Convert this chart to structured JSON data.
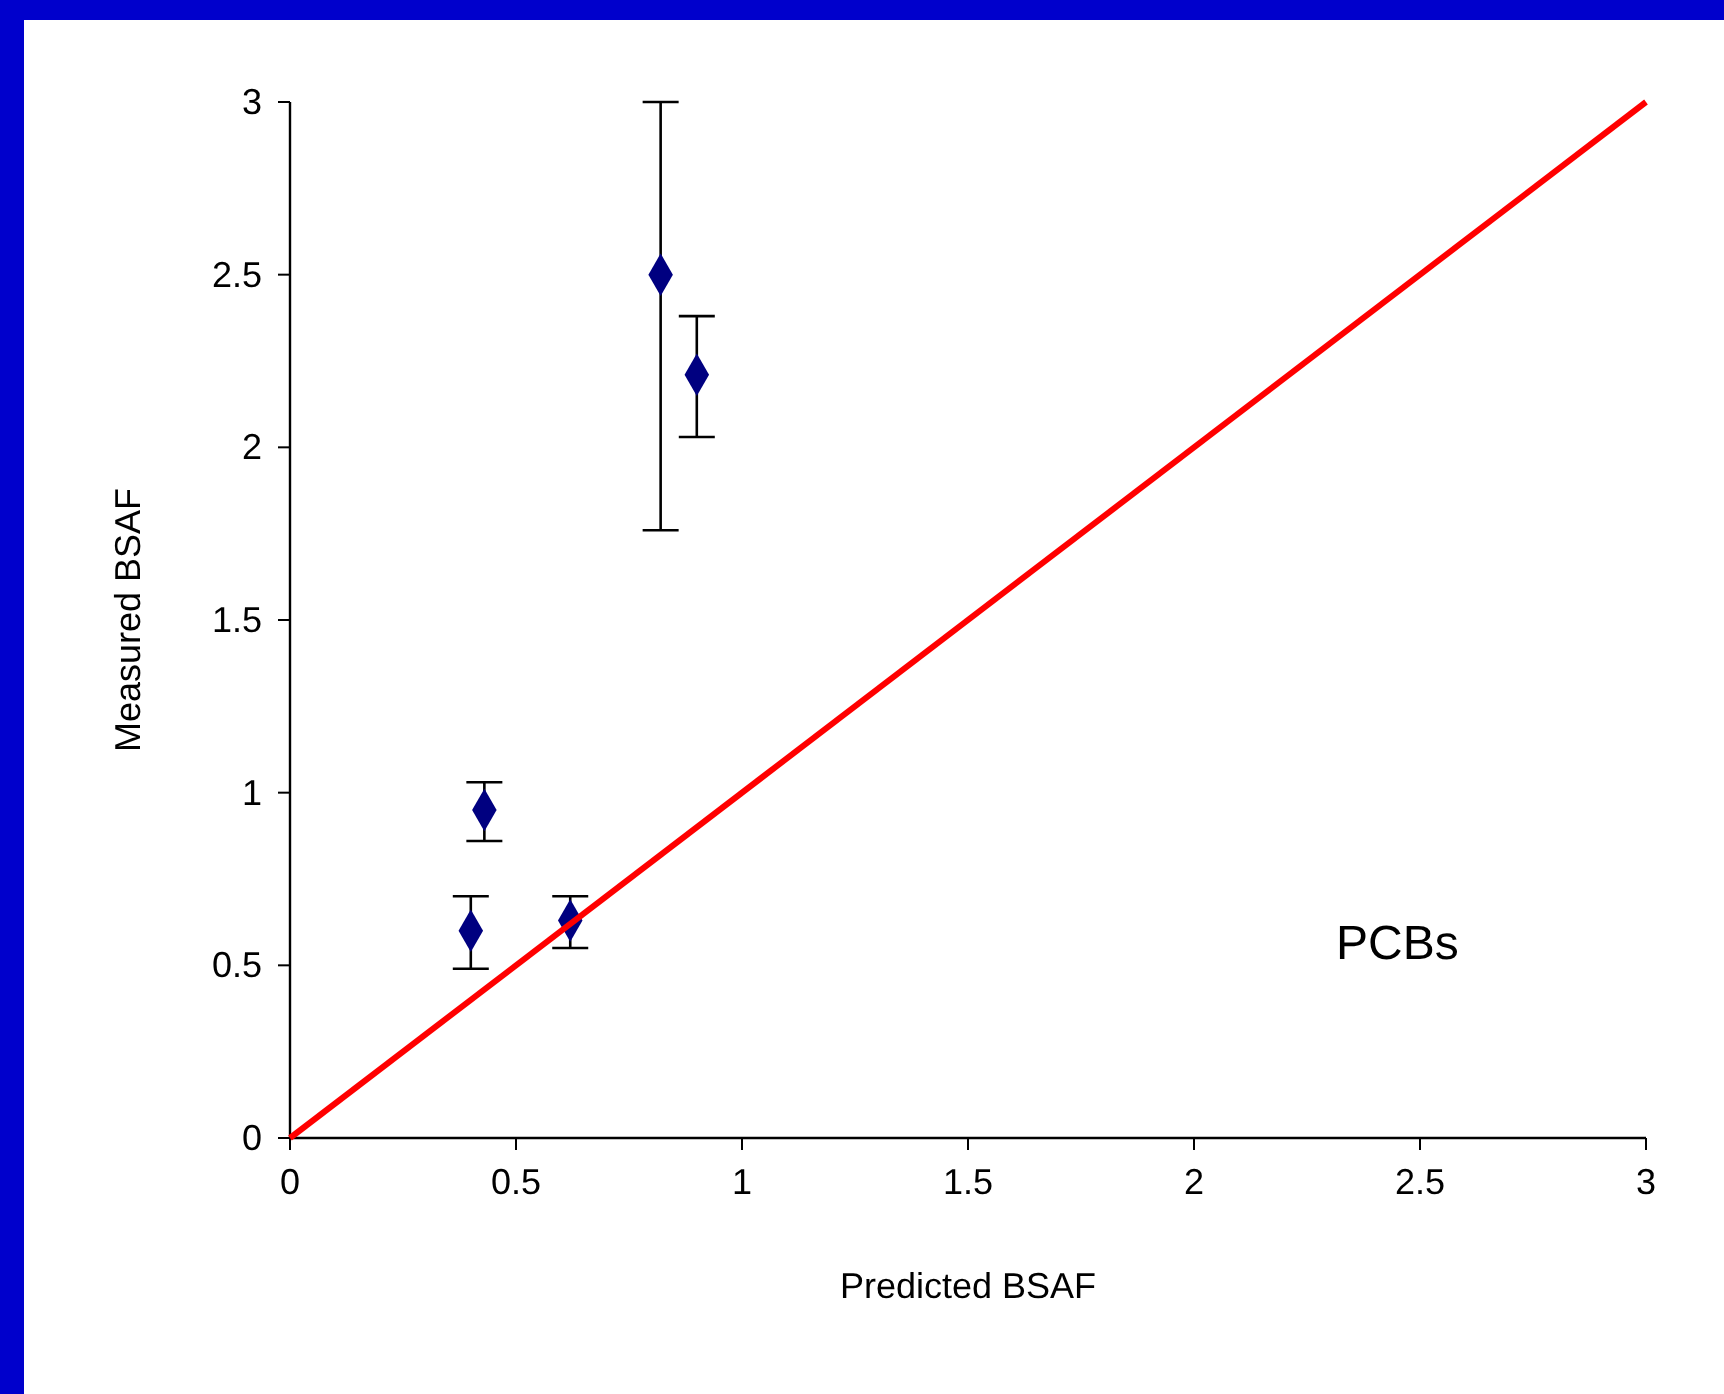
{
  "chart_data": {
    "type": "scatter",
    "xlabel": "Predicted BSAF",
    "ylabel": "Measured BSAF",
    "annotations": [
      "PCBs"
    ],
    "xlim": [
      0,
      3
    ],
    "ylim": [
      0,
      3
    ],
    "xticks": [
      0,
      0.5,
      1,
      1.5,
      2,
      2.5,
      3
    ],
    "yticks": [
      0,
      0.5,
      1,
      1.5,
      2,
      2.5,
      3
    ],
    "grid": false,
    "marker": "diamond",
    "series": [
      {
        "color": "#000080",
        "x": [
          0.4,
          0.43,
          0.62,
          0.82,
          0.9
        ],
        "values": [
          0.6,
          0.95,
          0.63,
          2.5,
          2.21
        ],
        "errors": [
          [
            0.49,
            0.7
          ],
          [
            0.86,
            1.03
          ],
          [
            0.55,
            0.7
          ],
          [
            1.76,
            3
          ],
          [
            2.03,
            2.38
          ]
        ]
      },
      {
        "type": "line",
        "color": "#ff0000",
        "x": [
          0,
          3
        ],
        "values": [
          0,
          3
        ],
        "marker": "none",
        "line_style": "solid"
      }
    ]
  }
}
